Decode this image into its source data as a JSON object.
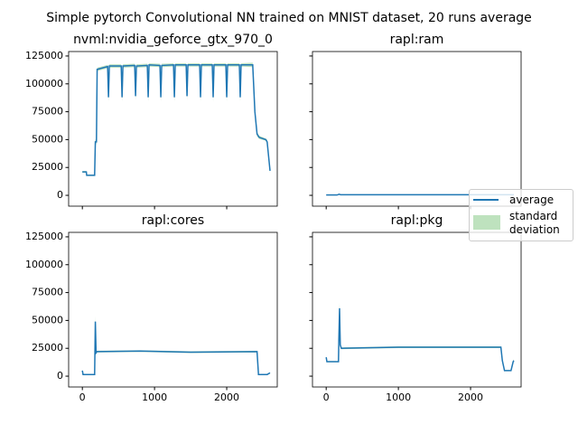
{
  "title": "Simple pytorch Convolutional NN trained on MNIST dataset, 20 runs average",
  "chart_data": [
    {
      "type": "line",
      "title": "nvml:nvidia_geforce_gtx_970_0",
      "x": [
        0,
        55,
        60,
        170,
        180,
        195,
        205,
        350,
        362,
        374,
        538,
        550,
        562,
        725,
        737,
        749,
        900,
        912,
        924,
        1075,
        1087,
        1099,
        1263,
        1275,
        1287,
        1438,
        1450,
        1462,
        1625,
        1637,
        1649,
        1800,
        1812,
        1824,
        1988,
        2000,
        2012,
        2175,
        2187,
        2199,
        2360,
        2390,
        2420,
        2450,
        2540,
        2560,
        2600
      ],
      "series": [
        {
          "color": "#1f77b4",
          "style": "line",
          "values": [
            21000,
            21000,
            18000,
            18000,
            48000,
            48000,
            113000,
            115500,
            88000,
            116000,
            116000,
            88000,
            116000,
            116500,
            89000,
            116000,
            116500,
            88000,
            117000,
            116500,
            88000,
            116500,
            117000,
            88000,
            117000,
            117000,
            89000,
            117000,
            117000,
            88000,
            117000,
            117000,
            88000,
            117000,
            117000,
            88000,
            117000,
            117000,
            88000,
            117000,
            117000,
            75000,
            55000,
            52000,
            50000,
            48000,
            22000
          ]
        },
        {
          "color": "#2ca02c",
          "style": "band",
          "values": [
            800,
            800,
            600,
            600,
            2000,
            2000,
            1500,
            1500,
            4000,
            1500,
            1500,
            4000,
            1500,
            1500,
            4000,
            1500,
            1500,
            4000,
            1500,
            1500,
            4000,
            1500,
            1500,
            4000,
            1500,
            1500,
            4000,
            1500,
            1500,
            4000,
            1500,
            1500,
            4000,
            1500,
            1500,
            4000,
            1500,
            1500,
            4000,
            1500,
            2000,
            3000,
            2000,
            1500,
            1000,
            2000,
            2000
          ]
        }
      ],
      "xlim": [
        -190,
        2700
      ],
      "ylim": [
        -9700,
        129000
      ],
      "xticks": [
        0,
        1000,
        2000
      ],
      "yticks": [
        0,
        25000,
        50000,
        75000,
        100000,
        125000
      ],
      "show_xticklabels": false,
      "show_yticklabels": true
    },
    {
      "type": "line",
      "title": "rapl:ram",
      "x": [
        0,
        150,
        180,
        200,
        2600
      ],
      "series": [
        {
          "name": "average",
          "color": "#1f77b4",
          "style": "line",
          "values": [
            300,
            300,
            1000,
            500,
            500
          ]
        },
        {
          "name": "standard deviation",
          "color": "#2ca02c",
          "style": "band",
          "values": [
            100,
            100,
            300,
            100,
            100
          ]
        }
      ],
      "xlim": [
        -190,
        2700
      ],
      "ylim": [
        -9700,
        129000
      ],
      "xticks": [
        0,
        1000,
        2000
      ],
      "yticks": [
        0,
        25000,
        50000,
        75000,
        100000,
        125000
      ],
      "show_xticklabels": false,
      "show_yticklabels": false,
      "legend": "right"
    },
    {
      "type": "line",
      "title": "rapl:cores",
      "x": [
        0,
        10,
        30,
        170,
        180,
        190,
        200,
        800,
        1500,
        2420,
        2440,
        2560,
        2600
      ],
      "series": [
        {
          "color": "#1f77b4",
          "style": "line",
          "values": [
            5000,
            1500,
            1500,
            1500,
            49000,
            21000,
            22000,
            22500,
            21500,
            22000,
            1500,
            1500,
            3000
          ]
        },
        {
          "color": "#2ca02c",
          "style": "band",
          "values": [
            500,
            300,
            300,
            300,
            5000,
            1500,
            800,
            800,
            800,
            800,
            300,
            300,
            500
          ]
        }
      ],
      "xlim": [
        -190,
        2700
      ],
      "ylim": [
        -9700,
        129000
      ],
      "xticks": [
        0,
        1000,
        2000
      ],
      "yticks": [
        0,
        25000,
        50000,
        75000,
        100000,
        125000
      ],
      "show_xticklabels": true,
      "show_yticklabels": true
    },
    {
      "type": "line",
      "title": "rapl:pkg",
      "x": [
        0,
        10,
        30,
        170,
        175,
        185,
        195,
        210,
        1000,
        2420,
        2440,
        2470,
        2560,
        2590,
        2600
      ],
      "series": [
        {
          "color": "#1f77b4",
          "style": "line",
          "values": [
            17000,
            13000,
            13000,
            13000,
            32000,
            61000,
            28000,
            25000,
            26000,
            26000,
            14000,
            5000,
            5000,
            13000,
            14000
          ]
        },
        {
          "color": "#2ca02c",
          "style": "band",
          "values": [
            1000,
            500,
            500,
            500,
            3000,
            5000,
            2000,
            800,
            800,
            800,
            2000,
            500,
            500,
            1000,
            1000
          ]
        }
      ],
      "xlim": [
        -190,
        2700
      ],
      "ylim": [
        -9700,
        129000
      ],
      "xticks": [
        0,
        1000,
        2000
      ],
      "yticks": [
        0,
        25000,
        50000,
        75000,
        100000,
        125000
      ],
      "show_xticklabels": true,
      "show_yticklabels": false
    }
  ]
}
